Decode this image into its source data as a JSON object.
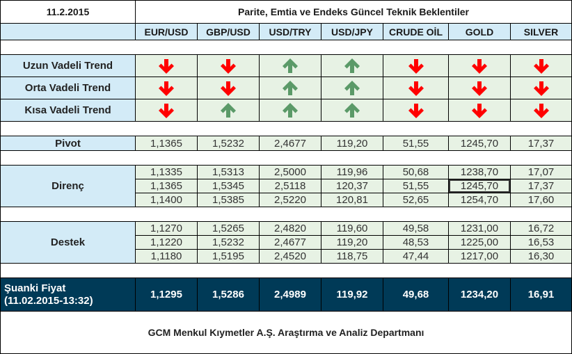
{
  "header": {
    "date": "11.2.2015",
    "title": "Parite, Emtia ve Endeks Güncel Teknik Beklentiler"
  },
  "columns": [
    "EUR/USD",
    "GBP/USD",
    "USD/TRY",
    "USD/JPY",
    "CRUDE OİL",
    "GOLD",
    "SILVER"
  ],
  "colors": {
    "label_bg": "#d3ebf7",
    "cell_bg": "#e7f2e4",
    "price_bg": "#003a57",
    "down_arrow": "#ff0000",
    "up_arrow": "#5b9a68"
  },
  "trends": [
    {
      "label": "Uzun Vadeli Trend",
      "directions": [
        "down",
        "down",
        "up",
        "up",
        "down",
        "down",
        "down"
      ]
    },
    {
      "label": "Orta Vadeli Trend",
      "directions": [
        "down",
        "down",
        "up",
        "up",
        "down",
        "down",
        "down"
      ]
    },
    {
      "label": "Kısa Vadeli Trend",
      "directions": [
        "down",
        "up",
        "up",
        "up",
        "down",
        "down",
        "down"
      ]
    }
  ],
  "pivot": {
    "label": "Pivot",
    "values": [
      "1,1365",
      "1,5232",
      "2,4677",
      "119,20",
      "51,55",
      "1245,70",
      "17,37"
    ]
  },
  "resistance": {
    "label": "Direnç",
    "rows": [
      [
        "1,1335",
        "1,5313",
        "2,5000",
        "119,96",
        "50,68",
        "1238,70",
        "17,07"
      ],
      [
        "1,1365",
        "1,5345",
        "2,5118",
        "120,37",
        "51,55",
        "1245,70",
        "17,37"
      ],
      [
        "1,1400",
        "1,5385",
        "2,5220",
        "120,81",
        "52,65",
        "1254,70",
        "17,60"
      ]
    ]
  },
  "support": {
    "label": "Destek",
    "rows": [
      [
        "1,1270",
        "1,5265",
        "2,4820",
        "119,60",
        "49,58",
        "1231,00",
        "16,72"
      ],
      [
        "1,1220",
        "1,5232",
        "2,4677",
        "119,20",
        "48,53",
        "1225,00",
        "16,53"
      ],
      [
        "1,1180",
        "1,5195",
        "2,4520",
        "118,75",
        "47,44",
        "1217,00",
        "16,30"
      ]
    ]
  },
  "current_price": {
    "label_line1": "Şuanki Fiyat",
    "label_line2": "(11.02.2015-13:32)",
    "values": [
      "1,1295",
      "1,5286",
      "2,4989",
      "119,92",
      "49,68",
      "1234,20",
      "16,91"
    ]
  },
  "footer": {
    "text": "GCM Menkul Kıymetler A.Ş. Araştırma ve Analiz Departmanı"
  }
}
